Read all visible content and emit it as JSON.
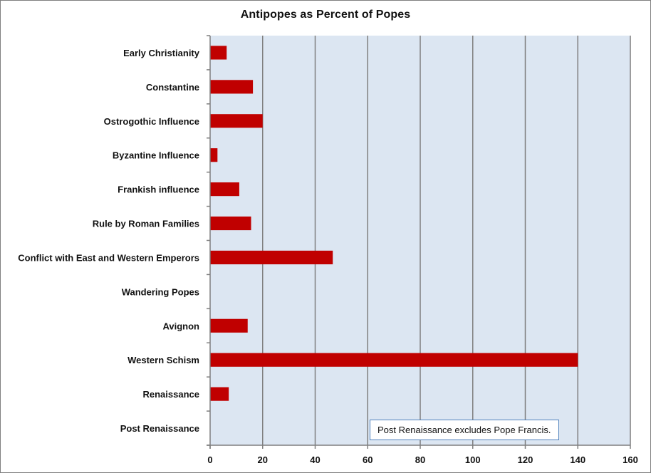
{
  "chart_data": {
    "type": "bar",
    "orientation": "horizontal",
    "title": "Antipopes as Percent of Popes",
    "xlabel": "",
    "ylabel": "",
    "categories": [
      "Early Christianity",
      "Constantine",
      "Ostrogothic Influence",
      "Byzantine Influence",
      "Frankish influence",
      "Rule by Roman Families",
      "Conflict with East and Western Emperors",
      "Wandering Popes",
      "Avignon",
      "Western Schism",
      "Renaissance",
      "Post Renaissance"
    ],
    "values": [
      6.3,
      16.3,
      20,
      2.8,
      11.1,
      15.6,
      46.7,
      0,
      14.3,
      140,
      7.1,
      0
    ],
    "xlim": [
      0,
      160
    ],
    "xticks": [
      0,
      20,
      40,
      60,
      80,
      100,
      120,
      140,
      160
    ],
    "grid": "vertical",
    "legend": "none",
    "colors": {
      "bar": "#c00000",
      "plot_background": "#dce6f2",
      "gridline": "#7f7f7f",
      "note_border": "#4f81bd"
    },
    "annotation": "Post Renaissance excludes Pope Francis."
  }
}
